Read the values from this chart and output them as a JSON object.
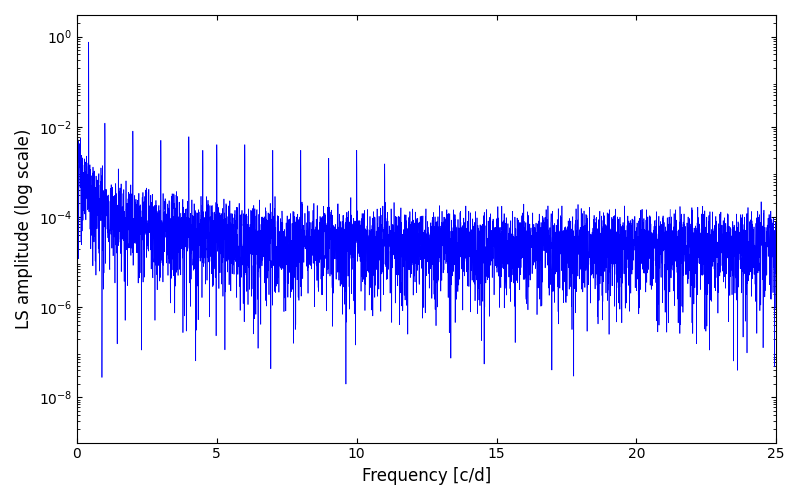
{
  "xlabel": "Frequency [c/d]",
  "ylabel": "LS amplitude (log scale)",
  "xlim": [
    0,
    25
  ],
  "ylim_low": 1e-09,
  "ylim_high": 3.0,
  "yticks": [
    1e-08,
    1e-06,
    0.0001,
    0.01,
    1.0
  ],
  "xticks": [
    0,
    5,
    10,
    15,
    20,
    25
  ],
  "line_color": "blue",
  "line_width": 0.5,
  "figsize": [
    8.0,
    5.0
  ],
  "dpi": 100,
  "seed": 12345,
  "n_points": 5000,
  "freq_max": 25.0,
  "background_color": "#ffffff"
}
